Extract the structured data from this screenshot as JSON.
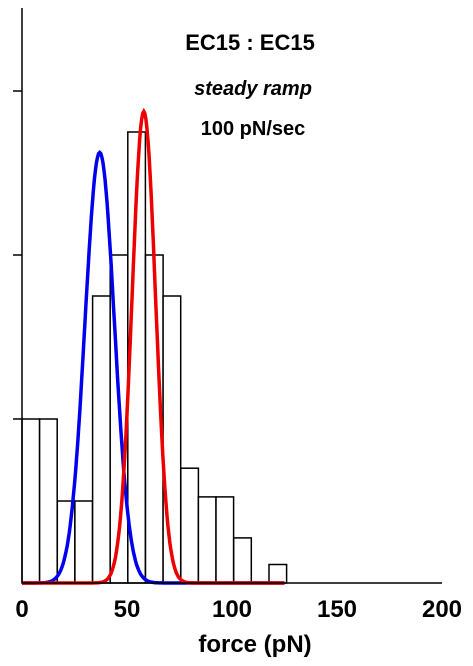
{
  "chart_data": {
    "type": "bar",
    "title": "EC15 : EC15",
    "subtitle": "steady ramp",
    "subtitle2": "100 pN/sec",
    "xlabel": "force (pN)",
    "ylabel": "",
    "xlim": [
      0,
      200
    ],
    "ylim": [
      0,
      13
    ],
    "xticks": [
      "0",
      "50",
      "100",
      "150",
      "200"
    ],
    "bin_width": 8.4,
    "bins": [
      {
        "x": 0.0,
        "value": 4
      },
      {
        "x": 8.4,
        "value": 4
      },
      {
        "x": 16.8,
        "value": 2
      },
      {
        "x": 25.2,
        "value": 2
      },
      {
        "x": 33.6,
        "value": 7
      },
      {
        "x": 42.0,
        "value": 8
      },
      {
        "x": 50.4,
        "value": 11
      },
      {
        "x": 58.8,
        "value": 8
      },
      {
        "x": 67.2,
        "value": 7
      },
      {
        "x": 75.6,
        "value": 2.8
      },
      {
        "x": 84.0,
        "value": 2.1
      },
      {
        "x": 92.4,
        "value": 2.1
      },
      {
        "x": 100.8,
        "value": 1.1
      },
      {
        "x": 117.6,
        "value": 0.45
      }
    ],
    "fits": [
      {
        "color": "#0000ee",
        "mean": 37,
        "sd": 7,
        "peak": 10.5,
        "range": [
          0,
          125
        ]
      },
      {
        "color": "#ee0000",
        "mean": 58,
        "sd": 5.6,
        "peak": 11.5,
        "range": [
          0,
          125
        ]
      }
    ],
    "grid": false,
    "legend": "none"
  }
}
